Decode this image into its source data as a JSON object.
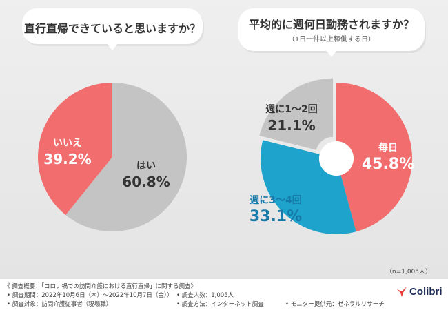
{
  "chart_data": [
    {
      "type": "pie",
      "title": "直行直帰できていると思いますか？",
      "slices": [
        {
          "label": "はい",
          "value": 60.8,
          "value_label": "60.8%",
          "color": "#c4c4c4"
        },
        {
          "label": "いいえ",
          "value": 39.2,
          "value_label": "39.2%",
          "color": "#f26d6d"
        }
      ]
    },
    {
      "type": "pie",
      "title": "平均的に週何日勤務されますか？",
      "subtitle": "（1日一件以上稼働する日）",
      "slices": [
        {
          "label": "毎日",
          "value": 45.8,
          "value_label": "45.8%",
          "color": "#f26d6d"
        },
        {
          "label": "週に3〜4回",
          "value": 33.1,
          "value_label": "33.1%",
          "color": "#1ea3cc"
        },
        {
          "label": "週に1〜2回",
          "value": 21.1,
          "value_label": "21.1%",
          "color": "#c4c4c4"
        }
      ]
    }
  ],
  "sample_note": "（n=1,005人）",
  "footer": {
    "title": "《 調査概要：「コロナ禍での訪問介護における直行直帰」に関する調査》",
    "period": "• 調査期間：2022年10月6日（木）〜2022年10月7日（金））",
    "target": "• 調査対象：訪問介護従事者（現場職）",
    "count": "• 調査人数：1,005人",
    "method": "• 調査方法：インターネット調査",
    "provider": "• モニター提供元：ゼネラルリサーチ"
  },
  "brand": {
    "name": "Colibri",
    "color": "#1a2a55",
    "mark_color": "#e8403a"
  }
}
